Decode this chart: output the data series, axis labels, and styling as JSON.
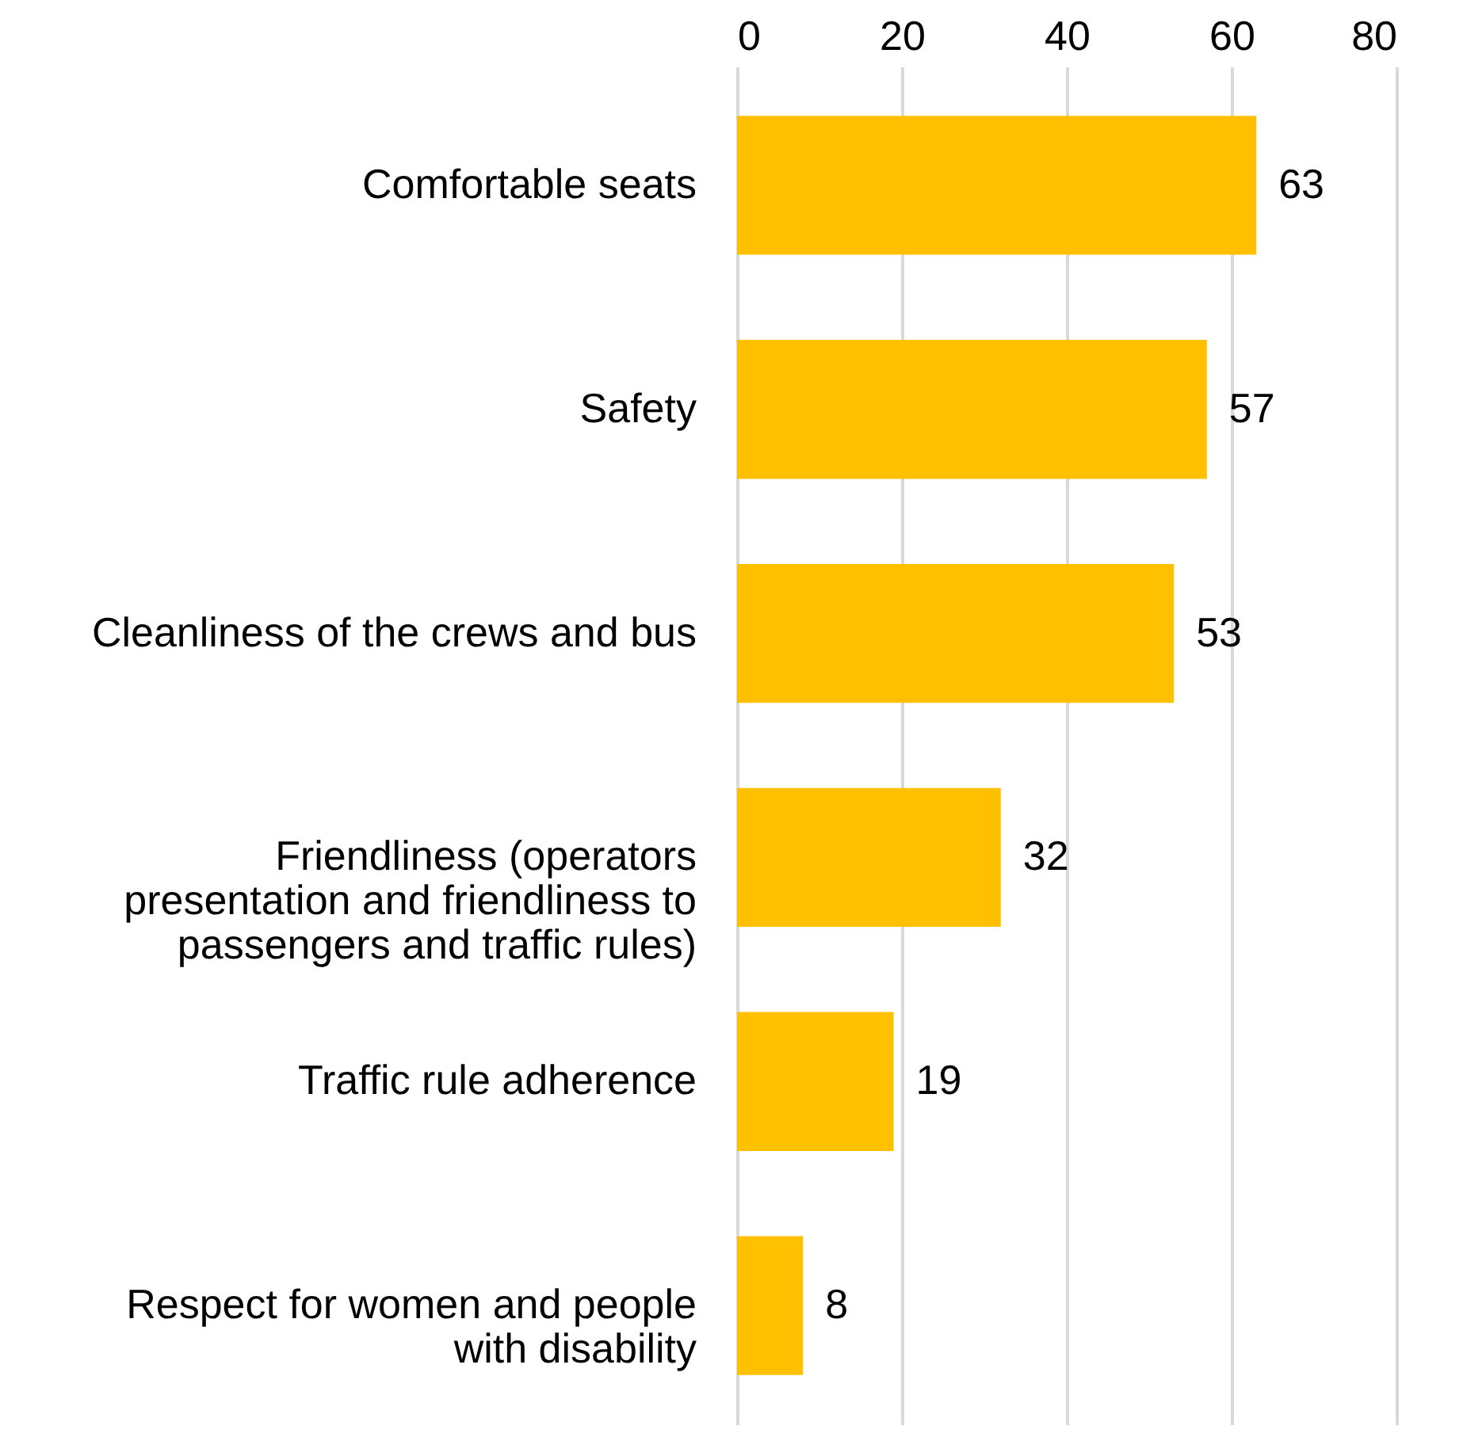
{
  "chart_data": {
    "type": "bar",
    "orientation": "horizontal",
    "categories": [
      "Comfortable seats",
      "Safety",
      "Cleanliness of the crews and bus",
      "Friendliness (operators presentation and friendliness to passengers and traffic rules)",
      "Traffic rule adherence",
      "Respect for women and people with disability"
    ],
    "values": [
      63,
      57,
      53,
      32,
      19,
      8
    ],
    "color": "#ffc000",
    "xlim": [
      0,
      80
    ],
    "xticks": [
      0,
      20,
      40,
      60,
      80
    ],
    "grid": "x",
    "data_labels": true
  }
}
